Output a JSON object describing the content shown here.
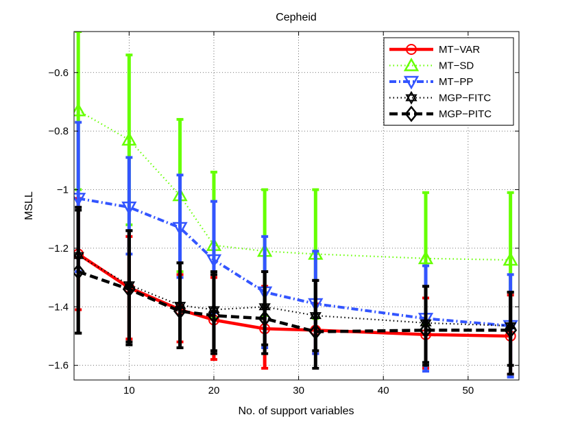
{
  "chart_data": {
    "type": "line",
    "title": "Cepheid",
    "xlabel": "No. of support variables",
    "ylabel": "MSLL",
    "xlim": [
      3.5,
      56
    ],
    "ylim": [
      -1.65,
      -0.46
    ],
    "xticks": [
      10,
      20,
      30,
      40,
      50
    ],
    "yticks": [
      -1.6,
      -1.4,
      -1.2,
      -1,
      -0.8,
      -0.6
    ],
    "ytick_labels": [
      "−1.6",
      "−1.4",
      "−1.2",
      "−1",
      "−0.8",
      "−0.6"
    ],
    "grid": true,
    "legend_position": "top-right",
    "x": [
      4,
      10,
      16,
      20,
      26,
      32,
      45,
      55
    ],
    "series": [
      {
        "name": "MT−VAR",
        "color": "#ff0000",
        "linestyle": "solid",
        "marker": "circle",
        "values": [
          -1.22,
          -1.335,
          -1.41,
          -1.445,
          -1.475,
          -1.48,
          -1.495,
          -1.5
        ],
        "lower": [
          -1.41,
          -1.51,
          -1.52,
          -1.58,
          -1.61,
          -1.56,
          -1.61,
          -1.63
        ],
        "upper": [
          -1.03,
          -1.16,
          -1.29,
          -1.3,
          -1.33,
          -1.39,
          -1.37,
          -1.36
        ]
      },
      {
        "name": "MT−SD",
        "color": "#66ff00",
        "linestyle": "dotted",
        "marker": "triangle-up",
        "values": [
          -0.73,
          -0.83,
          -1.02,
          -1.19,
          -1.21,
          -1.22,
          -1.235,
          -1.24
        ],
        "lower": [
          -1.0,
          -1.12,
          -1.28,
          -1.44,
          -1.43,
          -1.44,
          -1.46,
          -1.47
        ],
        "upper": [
          -0.46,
          -0.54,
          -0.76,
          -0.94,
          -1.0,
          -1.0,
          -1.01,
          -1.01
        ]
      },
      {
        "name": "MT−PP",
        "color": "#3355ff",
        "linestyle": "dashdot",
        "marker": "triangle-down",
        "values": [
          -1.03,
          -1.06,
          -1.13,
          -1.24,
          -1.35,
          -1.39,
          -1.44,
          -1.465
        ],
        "lower": [
          -1.28,
          -1.22,
          -1.3,
          -1.42,
          -1.54,
          -1.56,
          -1.62,
          -1.64
        ],
        "upper": [
          -0.77,
          -0.89,
          -0.95,
          -1.04,
          -1.16,
          -1.21,
          -1.26,
          -1.29
        ]
      },
      {
        "name": "MGP−FITC",
        "color": "#000000",
        "linestyle": "dotted",
        "marker": "hexagram",
        "values": [
          -1.225,
          -1.325,
          -1.395,
          -1.41,
          -1.4,
          -1.43,
          -1.455,
          -1.465
        ],
        "lower": [
          -1.49,
          -1.52,
          -1.54,
          -1.55,
          -1.53,
          -1.55,
          -1.6,
          -1.63
        ],
        "upper": [
          -1.06,
          -1.14,
          -1.25,
          -1.28,
          -1.28,
          -1.31,
          -1.33,
          -1.35
        ]
      },
      {
        "name": "MGP−PITC",
        "color": "#000000",
        "linestyle": "dashed",
        "marker": "diamond",
        "values": [
          -1.28,
          -1.34,
          -1.415,
          -1.43,
          -1.44,
          -1.485,
          -1.48,
          -1.48
        ],
        "lower": [
          -1.49,
          -1.53,
          -1.54,
          -1.56,
          -1.56,
          -1.61,
          -1.59,
          -1.6
        ],
        "upper": [
          -1.07,
          -1.14,
          -1.25,
          -1.29,
          -1.28,
          -1.31,
          -1.33,
          -1.35
        ]
      }
    ]
  }
}
